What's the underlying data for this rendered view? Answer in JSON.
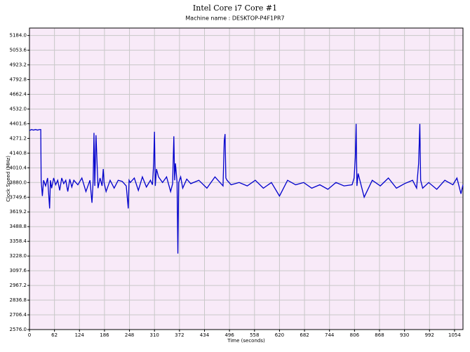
{
  "chart_data": {
    "type": "line",
    "title": "Intel Core i7 Core #1",
    "subtitle": "Machine name : DESKTOP-P4F1PR7",
    "x_label": "Time (seconds)",
    "y_label": "Clock Speed (MHz)",
    "grid": true,
    "background": "#f8eaf8",
    "title_color": "#2e9a2e",
    "xlim": [
      0,
      1075
    ],
    "ylim": [
      2576,
      5250
    ],
    "xticks": [
      0,
      62,
      124,
      186,
      248,
      310,
      372,
      434,
      496,
      558,
      620,
      682,
      744,
      806,
      868,
      930,
      992,
      1054
    ],
    "yticks": [
      {
        "value": 2576,
        "label": "2576.0"
      },
      2706.4,
      2836.8,
      2967.2,
      3097.6,
      {
        "value": 3228,
        "label": "3228.0"
      },
      3358.4,
      3488.8,
      3619.2,
      3749.6,
      {
        "value": 3880,
        "label": "3880.0"
      },
      4010.4,
      4140.8,
      4271.2,
      4401.6,
      {
        "value": 4532,
        "label": "4532.0"
      },
      4662.4,
      4792.8,
      4923.2,
      5053.6,
      {
        "value": 5184,
        "label": "5184.0"
      }
    ],
    "x": [
      0,
      5,
      10,
      15,
      20,
      25,
      28,
      29,
      32,
      35,
      40,
      45,
      50,
      52,
      55,
      60,
      65,
      70,
      75,
      80,
      85,
      90,
      95,
      100,
      105,
      110,
      120,
      130,
      140,
      150,
      155,
      158,
      160,
      162,
      165,
      170,
      175,
      180,
      183,
      185,
      190,
      200,
      210,
      220,
      230,
      240,
      245,
      247,
      250,
      260,
      270,
      280,
      290,
      300,
      305,
      308,
      310,
      312,
      315,
      320,
      330,
      340,
      350,
      355,
      358,
      360,
      362,
      366,
      368,
      370,
      375,
      380,
      390,
      400,
      420,
      440,
      460,
      480,
      483,
      485,
      487,
      490,
      500,
      520,
      540,
      560,
      580,
      600,
      620,
      640,
      660,
      680,
      700,
      720,
      740,
      760,
      780,
      800,
      805,
      808,
      810,
      812,
      815,
      830,
      850,
      870,
      890,
      910,
      930,
      950,
      960,
      965,
      968,
      970,
      975,
      990,
      1010,
      1030,
      1050,
      1060,
      1070,
      1075
    ],
    "series": [
      {
        "name": "Clock Speed",
        "color": "#0000cc",
        "values": [
          4340,
          4350,
          4345,
          4350,
          4345,
          4350,
          4350,
          3900,
          3760,
          3900,
          3850,
          3920,
          3650,
          3900,
          3830,
          3920,
          3860,
          3900,
          3810,
          3920,
          3870,
          3900,
          3800,
          3910,
          3840,
          3900,
          3860,
          3920,
          3800,
          3900,
          3700,
          3900,
          4320,
          3850,
          4300,
          3830,
          3920,
          3850,
          4000,
          3880,
          3800,
          3900,
          3830,
          3900,
          3890,
          3850,
          3650,
          3900,
          3880,
          3920,
          3810,
          3930,
          3840,
          3900,
          3860,
          4050,
          4330,
          3850,
          4000,
          3930,
          3880,
          3930,
          3800,
          3870,
          4290,
          3900,
          4050,
          3880,
          3250,
          3880,
          3930,
          3830,
          3910,
          3870,
          3900,
          3830,
          3930,
          3850,
          4250,
          4310,
          3920,
          3900,
          3860,
          3880,
          3850,
          3900,
          3830,
          3880,
          3760,
          3900,
          3860,
          3880,
          3830,
          3860,
          3820,
          3880,
          3850,
          3860,
          3920,
          4100,
          4400,
          3850,
          3960,
          3750,
          3900,
          3850,
          3920,
          3830,
          3870,
          3900,
          3830,
          4050,
          4400,
          3900,
          3830,
          3880,
          3820,
          3900,
          3860,
          3920,
          3780,
          3860
        ]
      }
    ]
  }
}
